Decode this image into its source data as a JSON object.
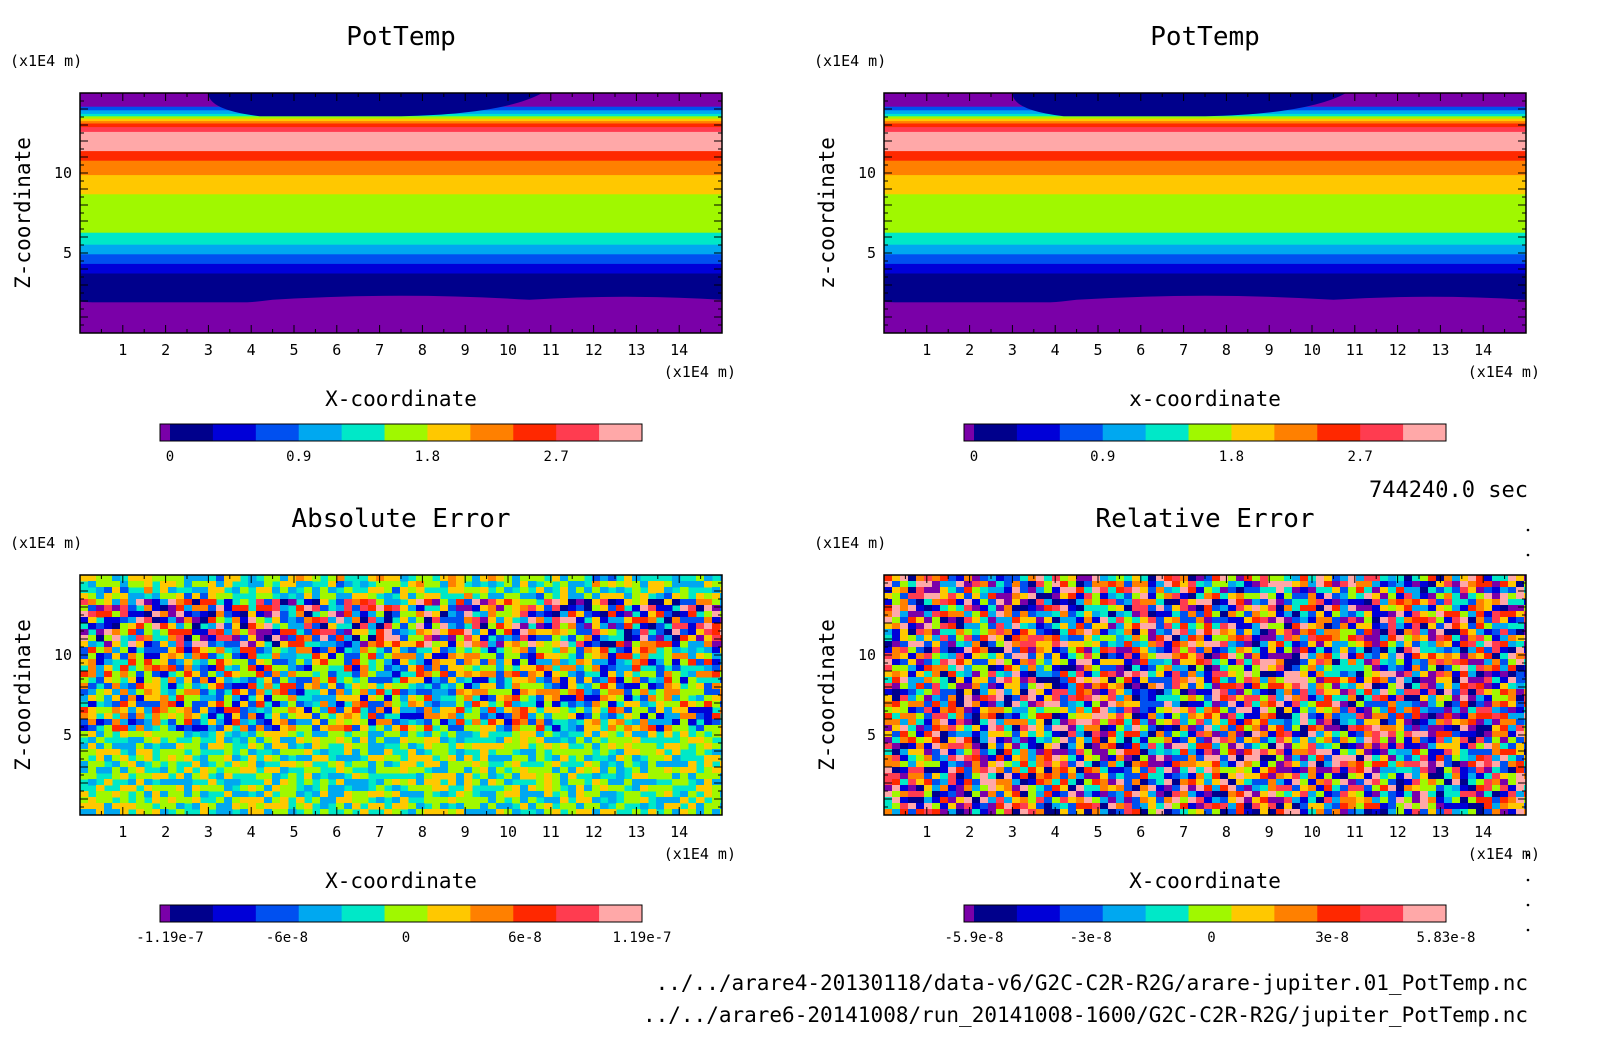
{
  "time_label": "744240.0 sec",
  "files": [
    "../../arare4-20130118/data-v6/G2C-C2R-R2G/arare-jupiter.01_PotTemp.nc",
    "../../arare6-20141008/run_20141008-1600/G2C-C2R-R2G/jupiter_PotTemp.nc"
  ],
  "palette": [
    "#7a00a8",
    "#00008c",
    "#0000d8",
    "#0050f0",
    "#00a8f0",
    "#00e8c8",
    "#a0f800",
    "#ffc800",
    "#ff8000",
    "#ff2800",
    "#ff3c50",
    "#ffa8a8"
  ],
  "chart_data": [
    {
      "type": "heatmap",
      "title": "PotTemp",
      "xlabel": "X-coordinate",
      "ylabel": "Z-coordinate",
      "xunit": "(x1E4 m)",
      "yunit": "(x1E4 m)",
      "xlim": [
        0,
        15
      ],
      "ylim": [
        0,
        15
      ],
      "xticks": [
        "1",
        "2",
        "3",
        "4",
        "5",
        "6",
        "7",
        "8",
        "9",
        "10",
        "11",
        "12",
        "13",
        "14"
      ],
      "yticks": [
        "5",
        "10"
      ],
      "colorbar": {
        "labels": [
          "0",
          "0.9",
          "1.8",
          "2.7"
        ],
        "min": 0,
        "max": 3.3
      },
      "pattern": "layered"
    },
    {
      "type": "heatmap",
      "title": "PotTemp",
      "xlabel": "x-coordinate",
      "ylabel": "z-coordinate",
      "xunit": "(x1E4 m)",
      "yunit": "(x1E4 m)",
      "xlim": [
        0,
        15
      ],
      "ylim": [
        0,
        15
      ],
      "xticks": [
        "1",
        "2",
        "3",
        "4",
        "5",
        "6",
        "7",
        "8",
        "9",
        "10",
        "11",
        "12",
        "13",
        "14"
      ],
      "yticks": [
        "5",
        "10"
      ],
      "colorbar": {
        "labels": [
          "0",
          "0.9",
          "1.8",
          "2.7"
        ],
        "min": 0,
        "max": 3.3
      },
      "pattern": "layered"
    },
    {
      "type": "heatmap",
      "title": "Absolute Error",
      "xlabel": "X-coordinate",
      "ylabel": "Z-coordinate",
      "xunit": "(x1E4 m)",
      "yunit": "(x1E4 m)",
      "xlim": [
        0,
        15
      ],
      "ylim": [
        0,
        15
      ],
      "xticks": [
        "1",
        "2",
        "3",
        "4",
        "5",
        "6",
        "7",
        "8",
        "9",
        "10",
        "11",
        "12",
        "13",
        "14"
      ],
      "yticks": [
        "5",
        "10"
      ],
      "colorbar": {
        "labels": [
          "-1.19e-7",
          "-6e-8",
          "0",
          "6e-8",
          "1.19e-7"
        ],
        "min": -1.19e-07,
        "max": 1.19e-07
      },
      "pattern": "noise-banded"
    },
    {
      "type": "heatmap",
      "title": "Relative Error",
      "xlabel": "X-coordinate",
      "ylabel": "Z-coordinate",
      "xunit": "(x1E4 m)",
      "yunit": "(x1E4 m)",
      "xlim": [
        0,
        15
      ],
      "ylim": [
        0,
        15
      ],
      "xticks": [
        "1",
        "2",
        "3",
        "4",
        "5",
        "6",
        "7",
        "8",
        "9",
        "10",
        "11",
        "12",
        "13",
        "14"
      ],
      "yticks": [
        "5",
        "10"
      ],
      "colorbar": {
        "labels": [
          "-5.9e-8",
          "-3e-8",
          "0",
          "3e-8",
          "5.83e-8"
        ],
        "min": -5.9e-08,
        "max": 5.83e-08
      },
      "pattern": "noise"
    }
  ]
}
